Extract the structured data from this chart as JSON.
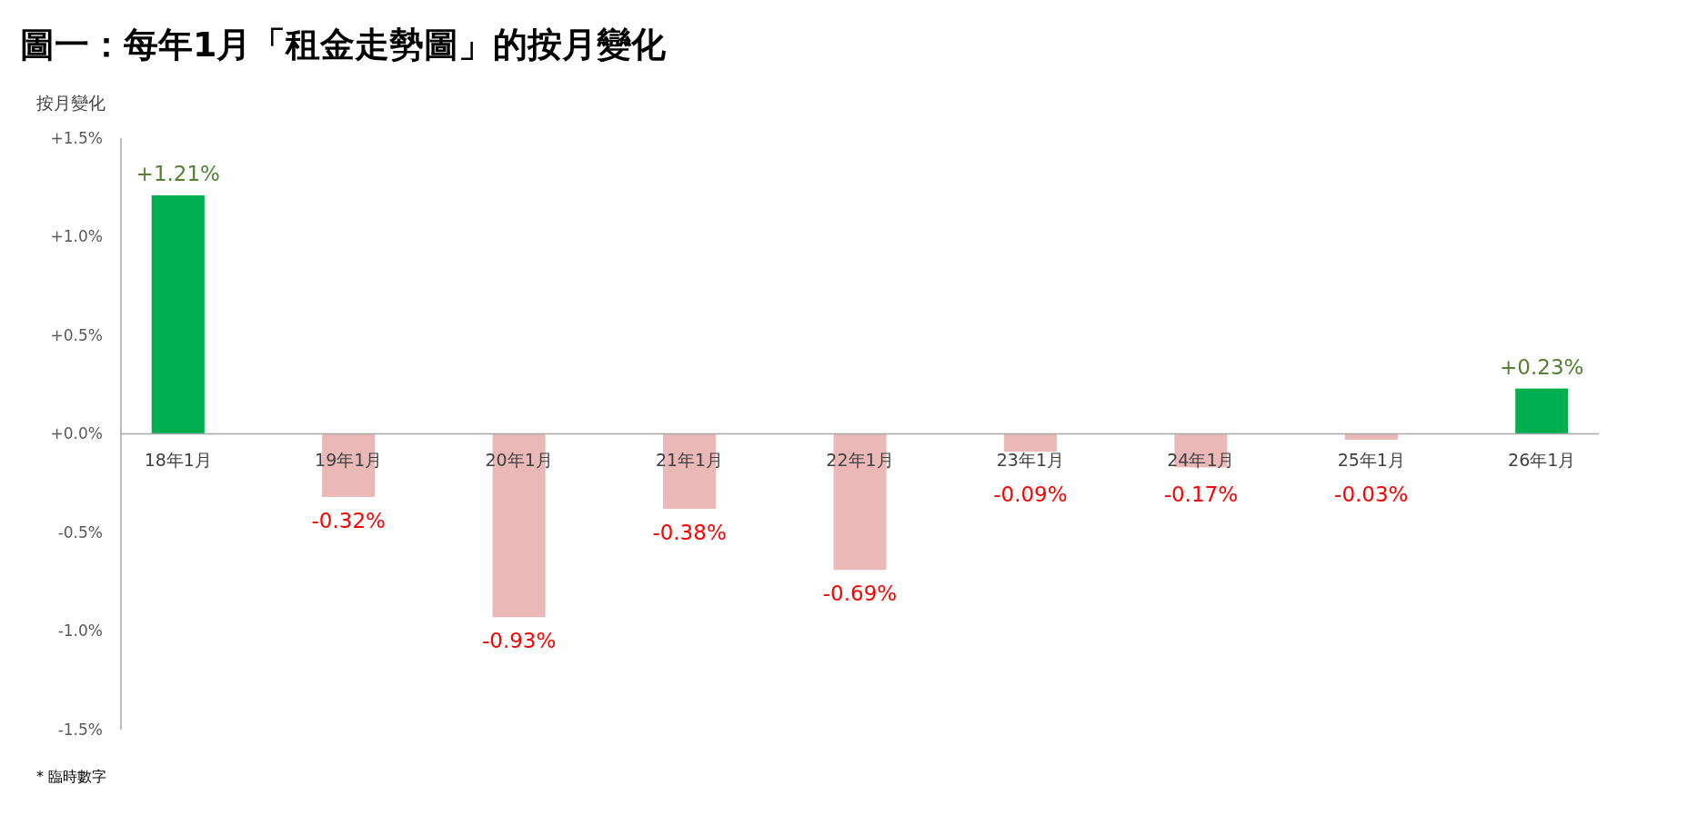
{
  "chart_data": {
    "type": "bar",
    "title": "圖一：每年1月「租金走勢圖」的按月變化",
    "ylabel": "按月變化",
    "categories": [
      "18年1月",
      "19年1月",
      "20年1月",
      "21年1月",
      "22年1月",
      "23年1月",
      "24年1月",
      "25年1月",
      "26年1月"
    ],
    "values": [
      1.21,
      -0.32,
      -0.93,
      -0.38,
      -0.69,
      -0.09,
      -0.17,
      -0.03,
      0.23
    ],
    "colors": [
      "#00b050",
      "#ebb8b8",
      "#ebb8b8",
      "#ebb8b8",
      "#ebb8b8",
      "#ebb8b8",
      "#ebb8b8",
      "#ebb8b8",
      "#00b050"
    ],
    "value_labels": [
      "+1.21%",
      "-0.32%",
      "-0.93%",
      "-0.38%",
      "-0.69%",
      "-0.09%",
      "-0.17%",
      "-0.03%",
      "+0.23%"
    ],
    "ylim": [
      -1.5,
      1.5
    ],
    "yticks": [
      {
        "value": 1.5,
        "label": "+1.5%"
      },
      {
        "value": 1.0,
        "label": "+1.0%"
      },
      {
        "value": 0.5,
        "label": "+0.5%"
      },
      {
        "value": 0,
        "label": "+0.0%"
      },
      {
        "value": -0.5,
        "label": "-0.5%"
      },
      {
        "value": -1.0,
        "label": "-1.0%"
      },
      {
        "value": -1.5,
        "label": "-1.5%"
      }
    ],
    "grid": false,
    "annotations": [
      "* 臨時數字"
    ]
  }
}
